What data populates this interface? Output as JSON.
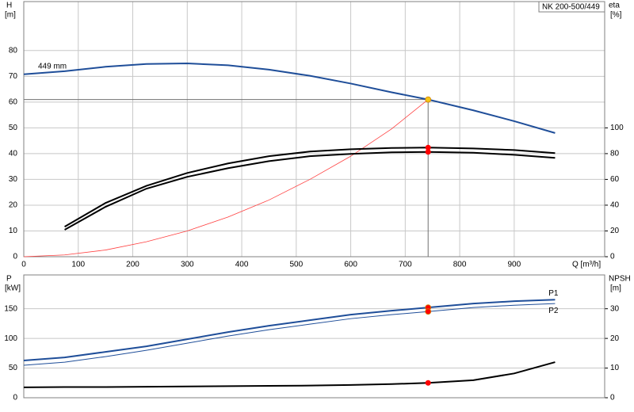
{
  "chart_data": [
    {
      "type": "line",
      "title": "NK 200-500/449",
      "xlabel": "Q [m³/h]",
      "ylabel": "H",
      "yunit": "[m]",
      "y2label": "eta",
      "y2unit": "[%]",
      "x": [
        0,
        75,
        150,
        225,
        300,
        375,
        450,
        525,
        600,
        675,
        742,
        825,
        900,
        975
      ],
      "xlim": [
        0,
        1066
      ],
      "xticks": [
        0,
        100,
        200,
        300,
        400,
        500,
        600,
        700,
        800,
        900
      ],
      "ylim": [
        0,
        99
      ],
      "yticks": [
        0,
        10,
        20,
        30,
        40,
        50,
        60,
        70,
        80
      ],
      "y2lim": [
        0,
        198
      ],
      "y2ticks": [
        0,
        20,
        40,
        60,
        80,
        100
      ],
      "grid": true,
      "crosshair": true,
      "series": [
        {
          "name": "449 mm",
          "label_at": "start",
          "color": "#1f4e99",
          "line_width": 2,
          "values": [
            70.8,
            72,
            73.7,
            74.8,
            75,
            74.3,
            72.6,
            70.2,
            67.2,
            63.8,
            61,
            56.8,
            52.6,
            48
          ]
        },
        {
          "color": "#ff4040",
          "line_width": 0.8,
          "values": [
            0,
            0.7,
            2.6,
            5.8,
            10,
            15.4,
            22,
            30,
            39,
            49.6,
            61,
            null,
            null,
            null
          ]
        },
        {
          "color": "#000000",
          "line_width": 2,
          "axis": "y2",
          "values": [
            null,
            23.3,
            41.7,
            55,
            65,
            72.4,
            78,
            81.6,
            83.4,
            84.4,
            84.7,
            84,
            82.8,
            80.4
          ]
        },
        {
          "color": "#000000",
          "line_width": 2,
          "axis": "y2",
          "values": [
            null,
            20.9,
            38.7,
            52.8,
            62,
            68.7,
            74.2,
            78,
            79.8,
            81,
            81.3,
            80.7,
            79.1,
            76.7
          ]
        }
      ],
      "duty_point": {
        "x": 742,
        "y": [
          61
        ],
        "y2": [
          84.7,
          81.3
        ],
        "y_color": "#f5c518",
        "y2_color": "#ff0000"
      }
    },
    {
      "type": "line",
      "ylabel": "P",
      "yunit": "[kW]",
      "y2label": "NPSH",
      "y2unit": "[m]",
      "x": [
        0,
        75,
        150,
        225,
        300,
        375,
        450,
        525,
        600,
        675,
        742,
        825,
        900,
        975
      ],
      "xlim": [
        0,
        1066
      ],
      "ylim": [
        0,
        207
      ],
      "yticks": [
        0,
        50,
        100,
        150
      ],
      "y2lim": [
        0,
        41.4
      ],
      "y2ticks": [
        0,
        10,
        20,
        30
      ],
      "grid": true,
      "crosshair": false,
      "series": [
        {
          "name": "P1",
          "label_at": "end-above",
          "color": "#1f4e99",
          "line_width": 2,
          "values": [
            62.7,
            68,
            77.3,
            86.7,
            98.7,
            110.7,
            121.3,
            130.7,
            140,
            146.7,
            152,
            158.7,
            162.7,
            165.3
          ]
        },
        {
          "name": "P2",
          "label_at": "end-below",
          "color": "#1f4e99",
          "line_width": 1,
          "values": [
            54.7,
            60,
            69.3,
            80,
            92,
            104,
            114.7,
            124,
            133.3,
            140,
            145.3,
            152,
            156,
            158.7
          ]
        },
        {
          "color": "#000000",
          "line_width": 2,
          "axis": "y2",
          "values": [
            3.5,
            3.6,
            3.6,
            3.7,
            3.8,
            3.9,
            4.0,
            4.1,
            4.3,
            4.6,
            5.0,
            5.9,
            8.2,
            12
          ]
        }
      ],
      "duty_point": {
        "x": 742,
        "y": [
          152,
          145.3
        ],
        "y2": [
          5.0
        ],
        "y_color": "#ff0000",
        "y2_color": "#ff0000"
      }
    }
  ]
}
